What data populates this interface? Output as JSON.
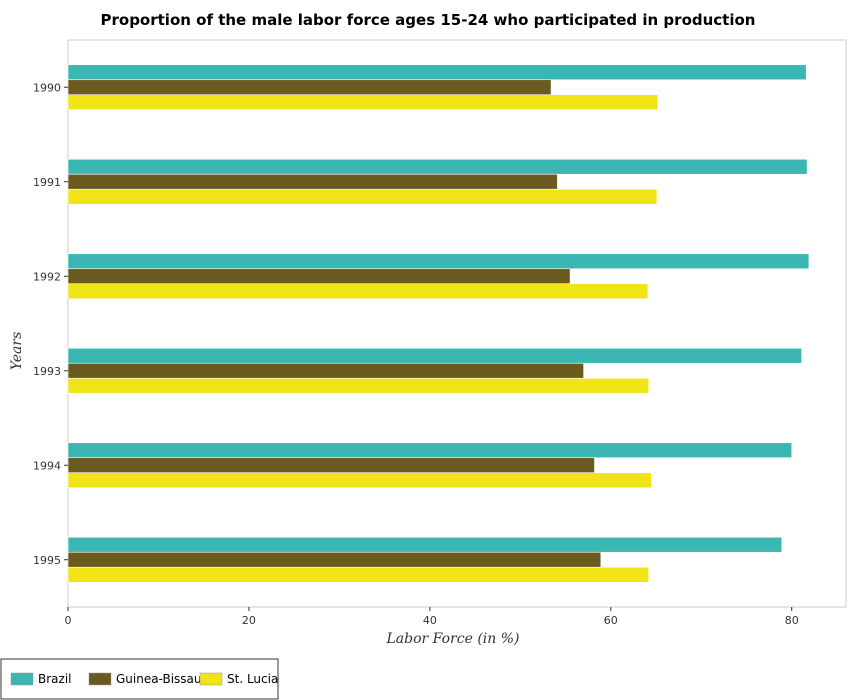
{
  "chart_data": {
    "type": "bar",
    "orientation": "horizontal",
    "title": "Proportion of the male labor force ages 15-24 who participated in production",
    "xlabel": "Labor Force (in %)",
    "ylabel": "Years",
    "categories": [
      "1990",
      "1991",
      "1992",
      "1993",
      "1994",
      "1995"
    ],
    "xlim": [
      0,
      86
    ],
    "xticks": [
      0,
      20,
      40,
      60,
      80
    ],
    "series": [
      {
        "name": "Brazil",
        "color": "#3cb6b2",
        "values": [
          81.6,
          81.7,
          81.9,
          81.1,
          80.0,
          78.9
        ]
      },
      {
        "name": "Guinea-Bissau",
        "color": "#6b5a1e",
        "values": [
          53.4,
          54.1,
          55.5,
          57.0,
          58.2,
          58.9
        ]
      },
      {
        "name": "St. Lucia",
        "color": "#f0e316",
        "values": [
          65.2,
          65.1,
          64.1,
          64.2,
          64.5,
          64.2
        ]
      }
    ],
    "grid": false,
    "legend_position": "bottom-left"
  }
}
